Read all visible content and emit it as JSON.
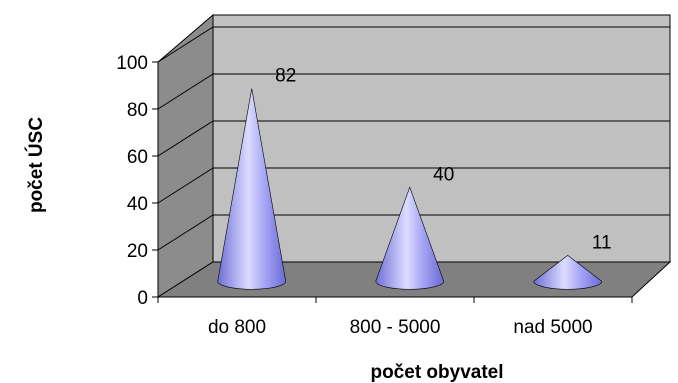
{
  "chart_data": {
    "type": "bar",
    "style": "3d-cone",
    "categories": [
      "do 800",
      "800 - 5000",
      "nad 5000"
    ],
    "values": [
      82,
      40,
      11
    ],
    "data_labels": [
      "82",
      "40",
      "11"
    ],
    "xlabel": "počet obyvatel",
    "ylabel": "počet ÚSC",
    "ylim": [
      0,
      100
    ],
    "yticks": [
      0,
      20,
      40,
      60,
      80,
      100
    ],
    "grid": true,
    "legend": "none",
    "colors": {
      "cone": "#8f8ff2",
      "cone_highlight": "#e6e6ff",
      "cone_shadow": "#5a5ac8",
      "back_wall": "#c0c0c0",
      "side_wall": "#8c8c8c",
      "floor": "#808080",
      "gridline": "#000000"
    }
  }
}
